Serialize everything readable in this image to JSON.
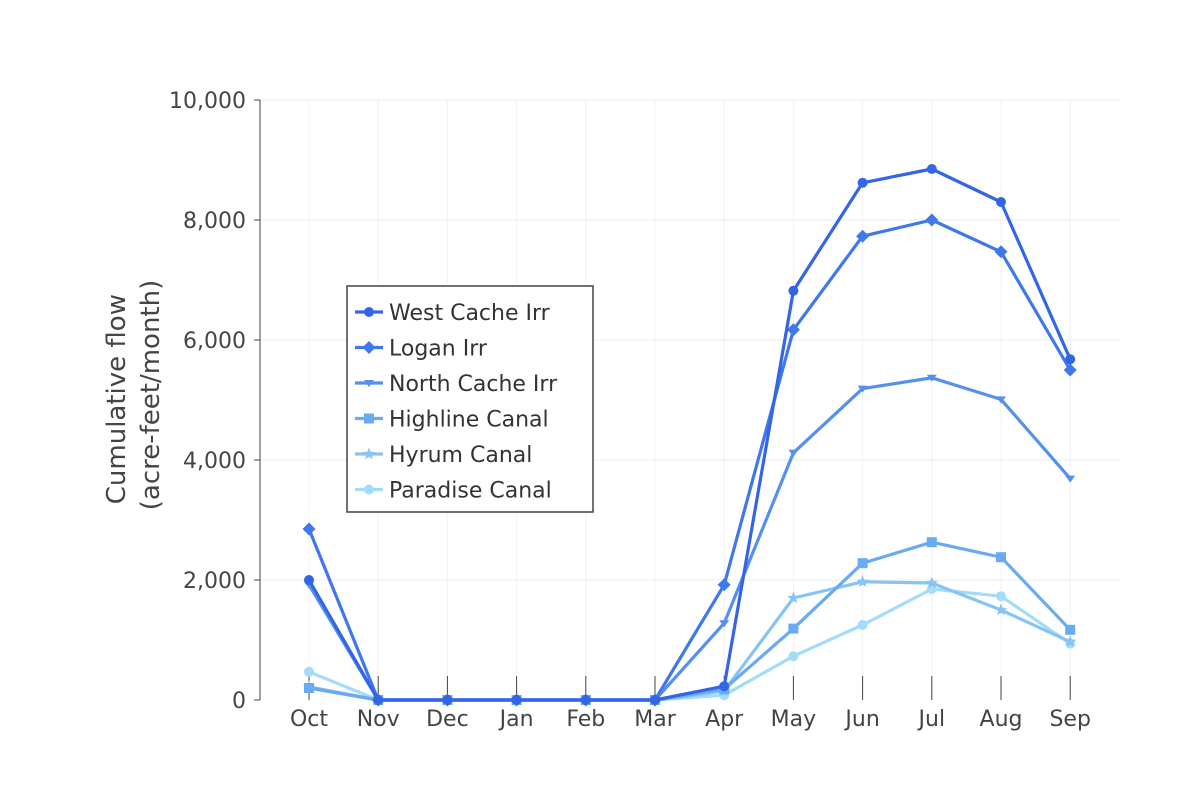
{
  "chart_data": {
    "type": "line",
    "categories": [
      "Oct",
      "Nov",
      "Dec",
      "Jan",
      "Feb",
      "Mar",
      "Apr",
      "May",
      "Jun",
      "Jul",
      "Aug",
      "Sep"
    ],
    "ylabel_line1": "Cumulative flow",
    "ylabel_line2": "(acre-feet/month)",
    "ylim": [
      0,
      10000
    ],
    "yticks": [
      0,
      2000,
      4000,
      6000,
      8000,
      10000
    ],
    "ytick_labels": [
      "0",
      "2,000",
      "4,000",
      "6,000",
      "8,000",
      "10,000"
    ],
    "grid": true,
    "legend_position": "left-middle",
    "series": [
      {
        "name": "West Cache Irr",
        "color": "#3366e6",
        "marker": "circle",
        "values": [
          2000,
          0,
          0,
          0,
          0,
          0,
          230,
          6820,
          8620,
          8850,
          8300,
          5680
        ]
      },
      {
        "name": "Logan Irr",
        "color": "#3f78ea",
        "marker": "diamond",
        "values": [
          2850,
          0,
          0,
          0,
          0,
          0,
          1920,
          6170,
          7730,
          8000,
          7470,
          5500
        ]
      },
      {
        "name": "North Cache Irr",
        "color": "#5590ee",
        "marker": "triangle-down",
        "values": [
          1920,
          0,
          0,
          0,
          0,
          0,
          1280,
          4120,
          5190,
          5370,
          5010,
          3690
        ]
      },
      {
        "name": "Highline Canal",
        "color": "#6aaaf2",
        "marker": "square",
        "values": [
          200,
          0,
          0,
          0,
          0,
          0,
          180,
          1190,
          2280,
          2630,
          2380,
          1170
        ]
      },
      {
        "name": "Hyrum Canal",
        "color": "#86c4f6",
        "marker": "star",
        "values": [
          220,
          0,
          0,
          0,
          0,
          0,
          150,
          1700,
          1970,
          1950,
          1500,
          970
        ]
      },
      {
        "name": "Paradise Canal",
        "color": "#a2dcfa",
        "marker": "circle",
        "values": [
          470,
          0,
          0,
          0,
          0,
          0,
          80,
          730,
          1250,
          1850,
          1730,
          940
        ]
      }
    ]
  }
}
